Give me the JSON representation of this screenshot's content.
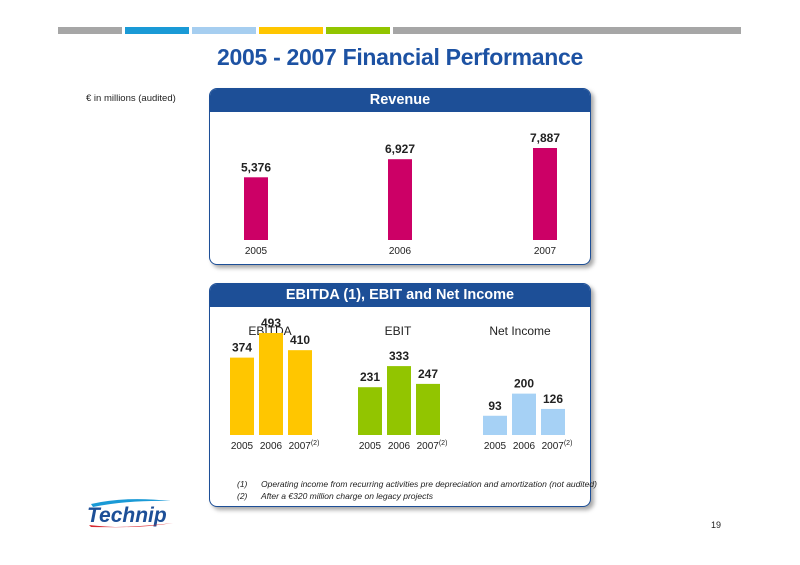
{
  "top_strip_colors": [
    "#a6a6a6",
    "#1a9ad6",
    "#a6cef0",
    "#ffc600",
    "#92c500",
    "#a6a6a6"
  ],
  "title": "2005 - 2007 Financial Performance",
  "units_note": "€ in millions (audited)",
  "colors": {
    "panel_header": "#1d4f97",
    "title": "#1d52a3",
    "revenue": "#cc0066",
    "ebitda": "#ffc600",
    "ebit": "#92c500",
    "net_income": "#a6d1f5"
  },
  "chart_data": [
    {
      "type": "bar",
      "title": "Revenue",
      "categories": [
        "2005",
        "2006",
        "2007"
      ],
      "values": [
        5376,
        6927,
        7887
      ],
      "value_labels": [
        "5,376",
        "6,927",
        "7,887"
      ]
    },
    {
      "type": "bar",
      "title": "EBITDA (1), EBIT and Net Income",
      "groups": [
        {
          "name": "EBITDA",
          "categories": [
            "2005",
            "2006",
            "2007"
          ],
          "category_sup": [
            "",
            "",
            "(2)"
          ],
          "values": [
            374,
            493,
            410
          ]
        },
        {
          "name": "EBIT",
          "categories": [
            "2005",
            "2006",
            "2007"
          ],
          "category_sup": [
            "",
            "",
            "(2)"
          ],
          "values": [
            231,
            333,
            247
          ]
        },
        {
          "name": "Net Income",
          "categories": [
            "2005",
            "2006",
            "2007"
          ],
          "category_sup": [
            "",
            "",
            "(2)"
          ],
          "values": [
            93,
            200,
            126
          ]
        }
      ]
    }
  ],
  "footnotes": [
    {
      "num": "(1)",
      "text": "Operating income from recurring activities pre depreciation and amortization (not audited)"
    },
    {
      "num": "(2)",
      "text": "After a €320 million charge on legacy projects"
    }
  ],
  "logo_text": "Technip",
  "page_number": "19"
}
